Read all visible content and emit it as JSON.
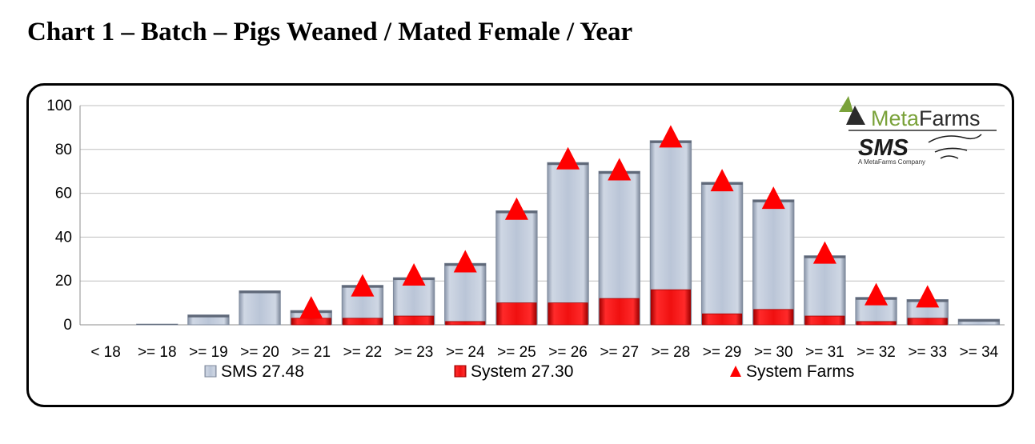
{
  "page_title": "Chart 1 – Batch – Pigs Weaned / Mated Female / Year",
  "logo": {
    "brand_meta": "Meta",
    "brand_farms": "Farms",
    "sms_text": "SMS",
    "tagline": "A MetaFarms Company",
    "colors": {
      "meta_green": "#7aa23a",
      "dark": "#2b2b2b"
    }
  },
  "colors": {
    "sms_bar": "#b8c3d6",
    "sms_bar_edge": "#7f8a9c",
    "system_bar": "#e8141b",
    "system_bar_edge": "#a40000",
    "farms_marker": "#ff0000",
    "grid": "#bfbfbf",
    "axis_text": "#000000"
  },
  "chart_data": {
    "type": "bar",
    "title": "Chart 1 – Batch – Pigs Weaned / Mated Female / Year",
    "xlabel": "",
    "ylabel": "",
    "ylim": [
      0,
      100
    ],
    "yticks": [
      "0",
      "20",
      "40",
      "60",
      "80",
      "100"
    ],
    "grid": true,
    "legend_position": "bottom",
    "categories": [
      "< 18",
      ">= 18",
      ">= 19",
      ">= 20",
      ">= 21",
      ">= 22",
      ">= 23",
      ">= 24",
      ">= 25",
      ">= 26",
      ">= 27",
      ">= 28",
      ">= 29",
      ">= 30",
      ">= 31",
      ">= 32",
      ">= 33",
      ">= 34"
    ],
    "series": [
      {
        "name": "SMS 27.48",
        "type": "bar",
        "values": [
          0,
          0.3,
          4.5,
          15.5,
          6.5,
          18,
          21.5,
          28,
          52,
          74,
          70,
          84,
          65,
          57,
          31.5,
          12.5,
          11.5,
          2.5
        ]
      },
      {
        "name": "System 27.30",
        "type": "bar",
        "values": [
          0,
          0,
          0,
          0,
          3,
          3,
          4,
          1.5,
          10,
          10,
          12,
          16,
          5,
          7,
          4,
          1.5,
          3,
          0
        ]
      },
      {
        "name": "System Farms",
        "type": "marker",
        "values": [
          null,
          null,
          null,
          null,
          8,
          18,
          23,
          29,
          53,
          76,
          71,
          86,
          66,
          58,
          33,
          14,
          13,
          null
        ]
      }
    ]
  }
}
